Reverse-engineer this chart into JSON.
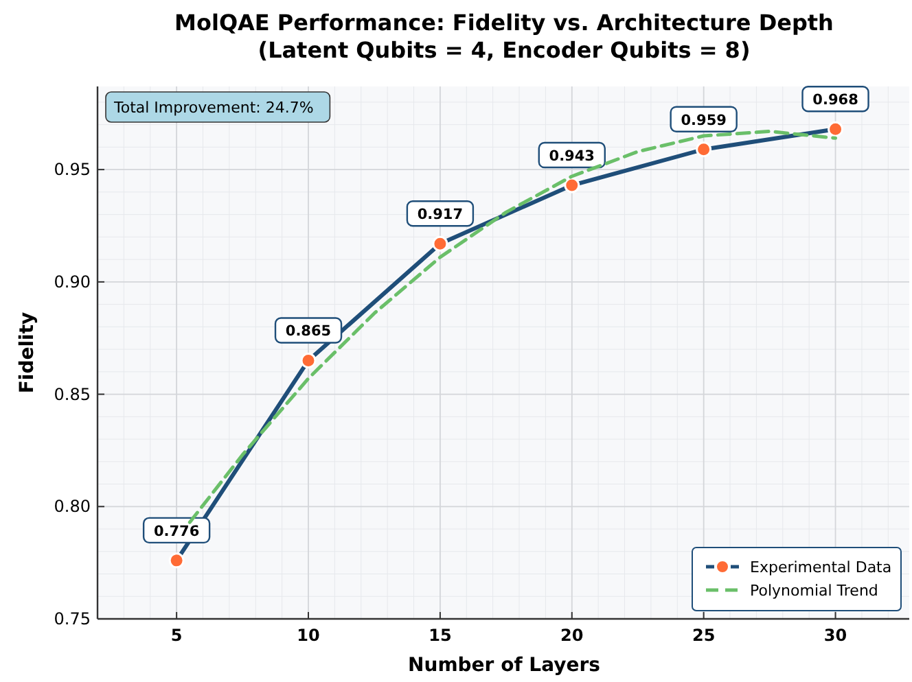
{
  "chart_data": {
    "type": "line",
    "title": "MolQAE Performance: Fidelity vs. Architecture Depth\n(Latent Qubits = 4, Encoder Qubits = 8)",
    "xlabel": "Number of Layers",
    "ylabel": "Fidelity",
    "xlim": [
      2.0,
      32.8
    ],
    "xticks": [
      5,
      10,
      15,
      20,
      25,
      30
    ],
    "ylim": [
      0.75,
      0.987
    ],
    "yticks": [
      {
        "value": 0.75,
        "label": "0.75"
      },
      {
        "value": 0.8,
        "label": "0.80"
      },
      {
        "value": 0.85,
        "label": "0.85"
      },
      {
        "value": 0.9,
        "label": "0.90"
      },
      {
        "value": 0.95,
        "label": "0.95"
      }
    ],
    "grid": true,
    "legend": "bottom right",
    "annotations": [
      "Total Improvement: 24.7%"
    ],
    "series": [
      {
        "name": "Experimental Data",
        "color": "#1f4e79",
        "colors": [
          "#ff6b35",
          "#ff6b35",
          "#ff6b35",
          "#ff6b35",
          "#ff6b35",
          "#ff6b35"
        ],
        "marker": "circle",
        "line_style": "solid",
        "x": [
          5,
          10,
          15,
          20,
          25,
          30
        ],
        "values": [
          0.776,
          0.865,
          0.917,
          0.943,
          0.959,
          0.968
        ],
        "value_labels": [
          "0.776",
          "0.865",
          "0.917",
          "0.943",
          "0.959",
          "0.968"
        ]
      },
      {
        "name": "Polynomial Trend",
        "color": "#6abf69",
        "marker": "none",
        "line_style": "dashed",
        "x": [
          5.5,
          7.5,
          10,
          12.5,
          15,
          17.5,
          20,
          22.5,
          25,
          27.5,
          30
        ],
        "values": [
          0.793,
          0.823,
          0.857,
          0.886,
          0.911,
          0.931,
          0.947,
          0.958,
          0.965,
          0.967,
          0.964
        ]
      }
    ]
  }
}
